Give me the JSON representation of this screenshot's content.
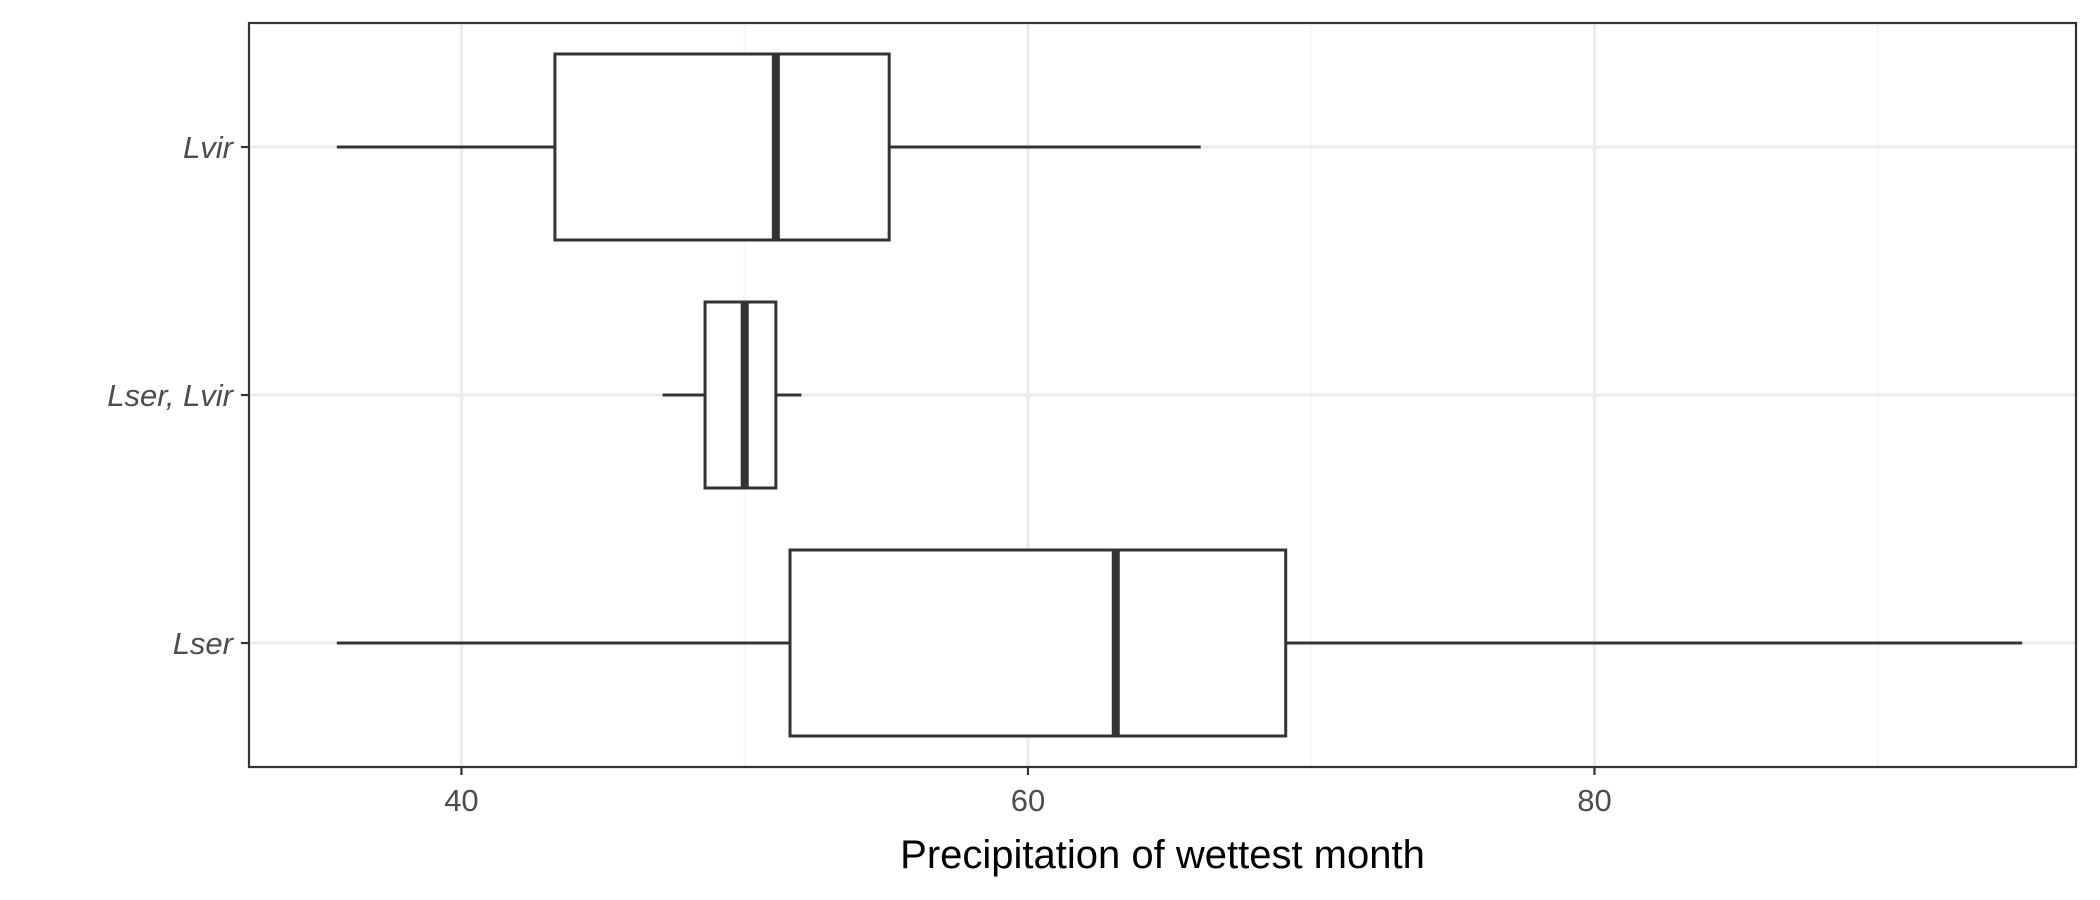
{
  "chart_data": {
    "type": "boxplot",
    "orientation": "horizontal",
    "xlabel": "Precipitation of wettest month",
    "ylabel": "",
    "xlim": [
      32.5,
      97
    ],
    "x_ticks": [
      40,
      60,
      80
    ],
    "x_tick_labels": [
      "40",
      "60",
      "80"
    ],
    "grid": true,
    "categories": [
      "Lvir",
      "Lser, Lvir",
      "Lser"
    ],
    "series": [
      {
        "category": "Lvir",
        "whisker_low": 35.6,
        "q1": 43.3,
        "median": 51.1,
        "q3": 55.1,
        "whisker_high": 66.1
      },
      {
        "category": "Lser, Lvir",
        "whisker_low": 47.1,
        "q1": 48.6,
        "median": 50.0,
        "q3": 51.1,
        "whisker_high": 52.0
      },
      {
        "category": "Lser",
        "whisker_low": 35.6,
        "q1": 51.6,
        "median": 63.1,
        "q3": 69.1,
        "whisker_high": 95.1
      }
    ],
    "colors": {
      "background": "#ffffff",
      "panel_border": "#333333",
      "grid_major": "#ebebeb",
      "grid_minor": "#f5f5f5",
      "box_fill": "#ffffff",
      "box_stroke": "#333333",
      "tick_text": "#4d4d4d",
      "title_text": "#000000"
    }
  }
}
